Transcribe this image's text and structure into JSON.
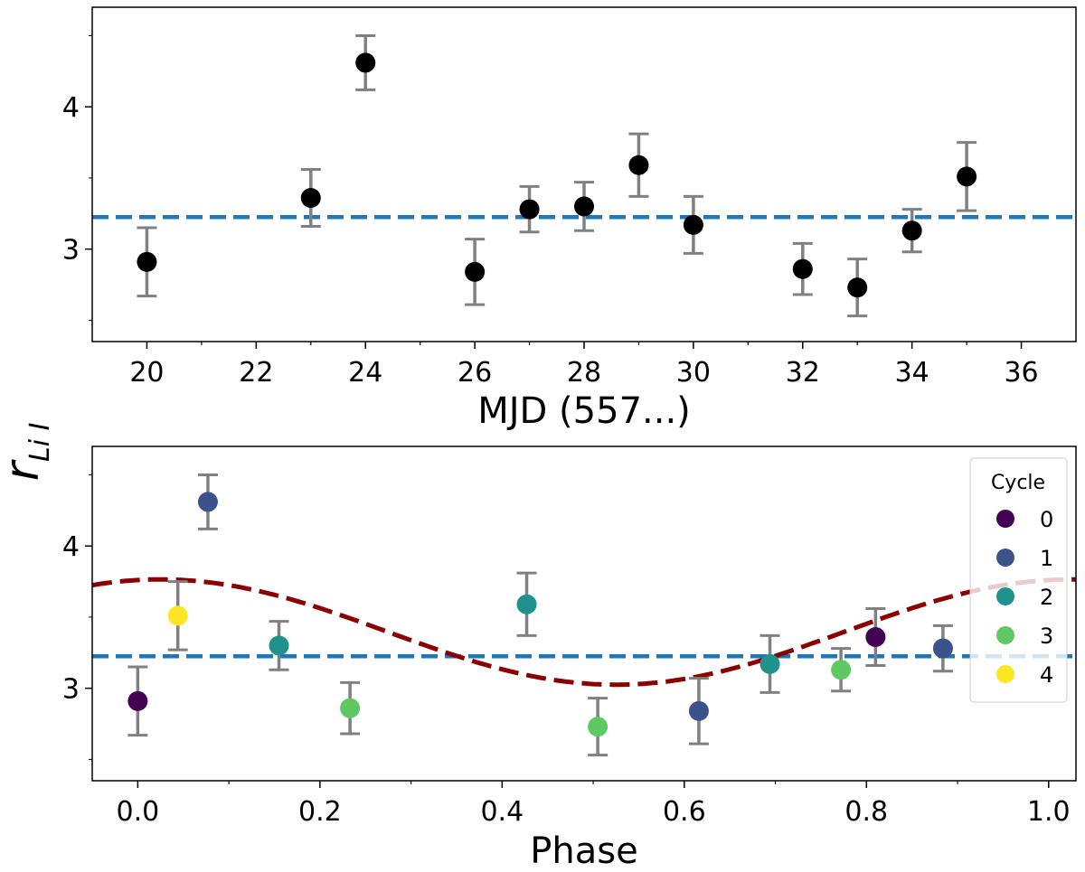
{
  "figure": {
    "shared_ylabel": "r_{LiI}",
    "ylabel_main": "r",
    "ylabel_sub": "Li I"
  },
  "chart_data": [
    {
      "type": "scatter",
      "xlabel": "MJD (557...)",
      "ylabel": "r_{LiI}",
      "xlim": [
        19.0,
        37.0
      ],
      "ylim": [
        2.35,
        4.7
      ],
      "xticks": [
        20,
        22,
        24,
        26,
        28,
        30,
        32,
        34,
        36
      ],
      "yticks": [
        3,
        4
      ],
      "reference_line": {
        "y": 3.225,
        "style": "dashed",
        "color": "#1f77b4"
      },
      "marker_color": "#000000",
      "errorbar_color": "#808080",
      "points": [
        {
          "x": 20,
          "y": 2.91,
          "err": 0.24
        },
        {
          "x": 23,
          "y": 3.36,
          "err": 0.2
        },
        {
          "x": 24,
          "y": 4.31,
          "err": 0.19
        },
        {
          "x": 26,
          "y": 2.84,
          "err": 0.23
        },
        {
          "x": 27,
          "y": 3.28,
          "err": 0.16
        },
        {
          "x": 28,
          "y": 3.3,
          "err": 0.17
        },
        {
          "x": 29,
          "y": 3.59,
          "err": 0.22
        },
        {
          "x": 30,
          "y": 3.17,
          "err": 0.2
        },
        {
          "x": 32,
          "y": 2.86,
          "err": 0.18
        },
        {
          "x": 33,
          "y": 2.73,
          "err": 0.2
        },
        {
          "x": 34,
          "y": 3.13,
          "err": 0.15
        },
        {
          "x": 35,
          "y": 3.51,
          "err": 0.24
        }
      ]
    },
    {
      "type": "scatter",
      "xlabel": "Phase",
      "ylabel": "r_{LiI}",
      "xlim": [
        -0.05,
        1.03
      ],
      "ylim": [
        2.35,
        4.7
      ],
      "xticks": [
        "0.0",
        "0.2",
        "0.4",
        "0.6",
        "0.8",
        "1.0"
      ],
      "yticks": [
        3,
        4
      ],
      "reference_line": {
        "y": 3.225,
        "style": "dashed",
        "color": "#1f77b4"
      },
      "fit_curve": {
        "type": "sinusoid",
        "amplitude": 0.37,
        "offset": 3.395,
        "peak_phase": 0.025,
        "color": "#8b0000",
        "style": "dashed"
      },
      "errorbar_color": "#808080",
      "legend": {
        "title": "Cycle",
        "position": "upper-right",
        "entries": [
          {
            "label": "0",
            "color": "#440154"
          },
          {
            "label": "1",
            "color": "#3b528b"
          },
          {
            "label": "2",
            "color": "#21918c"
          },
          {
            "label": "3",
            "color": "#5ec962"
          },
          {
            "label": "4",
            "color": "#fde725"
          }
        ]
      },
      "points": [
        {
          "x": 0.0,
          "y": 2.91,
          "err": 0.24,
          "cycle": 0
        },
        {
          "x": 0.044,
          "y": 3.51,
          "err": 0.24,
          "cycle": 4
        },
        {
          "x": 0.077,
          "y": 4.31,
          "err": 0.19,
          "cycle": 1
        },
        {
          "x": 0.155,
          "y": 3.3,
          "err": 0.17,
          "cycle": 2
        },
        {
          "x": 0.233,
          "y": 2.86,
          "err": 0.18,
          "cycle": 3
        },
        {
          "x": 0.427,
          "y": 3.59,
          "err": 0.22,
          "cycle": 2
        },
        {
          "x": 0.505,
          "y": 2.73,
          "err": 0.2,
          "cycle": 3
        },
        {
          "x": 0.616,
          "y": 2.84,
          "err": 0.23,
          "cycle": 1
        },
        {
          "x": 0.694,
          "y": 3.17,
          "err": 0.2,
          "cycle": 2
        },
        {
          "x": 0.772,
          "y": 3.13,
          "err": 0.15,
          "cycle": 3
        },
        {
          "x": 0.81,
          "y": 3.36,
          "err": 0.2,
          "cycle": 0
        },
        {
          "x": 0.884,
          "y": 3.28,
          "err": 0.16,
          "cycle": 1
        }
      ]
    }
  ]
}
